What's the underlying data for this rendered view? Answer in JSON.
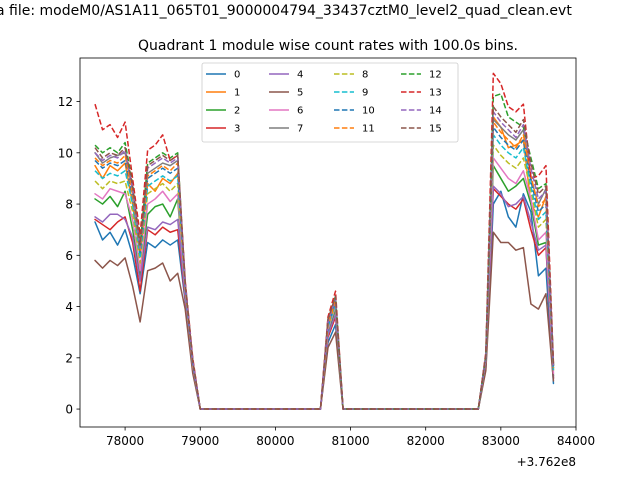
{
  "chart_data": {
    "type": "line",
    "title": "Quadrant 1 module wise count rates with 100.0s bins.",
    "file_title": "a file: modeM0/AS1A11_065T01_9000004794_33437cztM0_level2_quad_clean.evt",
    "xlabel": "",
    "ylabel": "",
    "x_offset_label": "+3.762e8",
    "xlim": [
      77400,
      84000
    ],
    "ylim": [
      -0.7,
      13.7
    ],
    "x_ticks": [
      "78000",
      "79000",
      "80000",
      "81000",
      "82000",
      "83000",
      "84000"
    ],
    "y_ticks": [
      "0",
      "2",
      "4",
      "6",
      "8",
      "10",
      "12"
    ],
    "x": [
      77600,
      77700,
      77800,
      77900,
      78000,
      78100,
      78200,
      78300,
      78400,
      78500,
      78600,
      78700,
      78800,
      78900,
      79000,
      80600,
      80700,
      80800,
      80900,
      82700,
      82800,
      82900,
      83000,
      83100,
      83200,
      83300,
      83400,
      83500,
      83600,
      83700
    ],
    "legend": {
      "position": "upper center",
      "columns": 4
    },
    "grid": false,
    "series": [
      {
        "name": "0",
        "color": "#1f77b4",
        "dash": false,
        "values": [
          7.3,
          6.6,
          6.9,
          6.4,
          7.0,
          6.0,
          4.5,
          6.5,
          6.3,
          6.6,
          6.4,
          6.6,
          4.2,
          1.5,
          0,
          0,
          2.6,
          3.3,
          0,
          0,
          1.6,
          8.0,
          8.5,
          7.5,
          7.1,
          8.4,
          7.7,
          5.2,
          5.5,
          1.0
        ]
      },
      {
        "name": "1",
        "color": "#ff7f0e",
        "dash": false,
        "values": [
          9.5,
          9.0,
          9.5,
          9.3,
          9.6,
          8.0,
          6.0,
          8.8,
          8.5,
          9.0,
          8.8,
          9.2,
          4.8,
          1.8,
          0,
          0,
          3.3,
          4.2,
          0,
          0,
          2.0,
          11.4,
          11.0,
          10.2,
          10.3,
          10.5,
          8.0,
          7.5,
          8.3,
          1.6
        ]
      },
      {
        "name": "2",
        "color": "#2ca02c",
        "dash": false,
        "values": [
          8.2,
          8.0,
          8.3,
          7.9,
          8.5,
          7.0,
          5.2,
          7.6,
          7.9,
          8.0,
          7.5,
          8.2,
          4.5,
          1.7,
          0,
          0,
          3.0,
          3.9,
          0,
          0,
          1.9,
          9.5,
          9.0,
          8.5,
          8.7,
          9.0,
          8.0,
          6.4,
          6.5,
          1.3
        ]
      },
      {
        "name": "3",
        "color": "#d62728",
        "dash": false,
        "values": [
          7.4,
          7.2,
          7.0,
          7.3,
          7.5,
          6.5,
          4.6,
          7.0,
          6.8,
          7.1,
          6.9,
          7.0,
          4.3,
          1.6,
          0,
          0,
          2.8,
          3.6,
          0,
          0,
          1.8,
          8.6,
          8.3,
          8.0,
          7.8,
          8.2,
          7.0,
          6.0,
          6.3,
          1.2
        ]
      },
      {
        "name": "4",
        "color": "#9467bd",
        "dash": false,
        "values": [
          7.5,
          7.3,
          7.6,
          7.6,
          7.4,
          6.7,
          5.0,
          7.1,
          7.0,
          7.3,
          7.2,
          7.4,
          4.4,
          1.6,
          0,
          0,
          2.9,
          3.7,
          0,
          0,
          1.8,
          8.7,
          8.4,
          7.9,
          8.0,
          8.3,
          7.3,
          6.2,
          6.4,
          1.2
        ]
      },
      {
        "name": "5",
        "color": "#8c564b",
        "dash": false,
        "values": [
          5.8,
          5.5,
          5.8,
          5.6,
          5.9,
          4.8,
          3.4,
          5.4,
          5.5,
          5.7,
          5.0,
          5.3,
          3.9,
          1.4,
          0,
          0,
          2.4,
          3.0,
          0,
          0,
          1.5,
          6.9,
          6.5,
          6.5,
          6.2,
          6.3,
          4.1,
          3.9,
          4.5,
          1.1
        ]
      },
      {
        "name": "6",
        "color": "#e377c2",
        "dash": false,
        "values": [
          8.4,
          8.2,
          8.6,
          8.5,
          8.4,
          7.4,
          5.4,
          8.0,
          8.2,
          8.5,
          8.1,
          8.4,
          4.6,
          1.7,
          0,
          0,
          3.1,
          4.0,
          0,
          0,
          1.9,
          9.8,
          9.4,
          9.0,
          8.8,
          9.3,
          8.2,
          6.6,
          6.9,
          1.4
        ]
      },
      {
        "name": "7",
        "color": "#7f7f7f",
        "dash": false,
        "values": [
          10.0,
          9.6,
          9.8,
          9.9,
          10.0,
          8.5,
          6.3,
          9.2,
          9.4,
          9.6,
          9.5,
          9.7,
          4.9,
          1.9,
          0,
          0,
          3.4,
          4.3,
          0,
          0,
          2.1,
          11.3,
          11.0,
          10.7,
          10.5,
          10.9,
          9.0,
          8.0,
          8.6,
          1.7
        ]
      },
      {
        "name": "8",
        "color": "#bcbd22",
        "dash": true,
        "values": [
          8.9,
          8.6,
          8.9,
          8.8,
          8.9,
          7.7,
          5.7,
          8.4,
          8.6,
          8.8,
          8.5,
          8.8,
          4.7,
          1.8,
          0,
          0,
          3.2,
          4.1,
          0,
          0,
          2.0,
          10.3,
          9.9,
          9.6,
          9.4,
          9.8,
          8.5,
          7.1,
          7.4,
          1.5
        ]
      },
      {
        "name": "9",
        "color": "#17becf",
        "dash": true,
        "values": [
          9.3,
          9.0,
          9.2,
          9.1,
          9.3,
          8.0,
          5.9,
          8.7,
          8.9,
          9.1,
          8.9,
          9.1,
          4.7,
          1.8,
          0,
          0,
          3.2,
          4.1,
          0,
          0,
          2.0,
          10.7,
          10.3,
          10.0,
          9.8,
          10.2,
          8.7,
          7.4,
          7.7,
          1.5
        ]
      },
      {
        "name": "10",
        "color": "#1f77b4",
        "dash": true,
        "values": [
          9.7,
          9.4,
          9.6,
          9.5,
          9.7,
          8.3,
          6.1,
          9.0,
          9.2,
          9.4,
          9.2,
          9.4,
          4.8,
          1.8,
          0,
          0,
          3.3,
          4.2,
          0,
          0,
          2.0,
          11.0,
          10.6,
          10.3,
          10.1,
          10.5,
          8.9,
          7.7,
          8.0,
          1.6
        ]
      },
      {
        "name": "11",
        "color": "#ff7f0e",
        "dash": true,
        "values": [
          9.8,
          9.5,
          9.7,
          9.6,
          9.9,
          8.4,
          6.2,
          9.1,
          9.3,
          9.5,
          9.3,
          9.6,
          4.8,
          1.9,
          0,
          0,
          3.3,
          4.2,
          0,
          0,
          2.1,
          11.2,
          10.8,
          10.5,
          10.2,
          10.7,
          9.1,
          7.9,
          8.2,
          1.6
        ]
      },
      {
        "name": "12",
        "color": "#2ca02c",
        "dash": true,
        "values": [
          10.3,
          10.0,
          10.2,
          10.0,
          10.4,
          8.8,
          6.4,
          9.6,
          9.8,
          10.0,
          9.8,
          10.0,
          4.9,
          1.9,
          0,
          0,
          3.5,
          4.4,
          0,
          0,
          2.1,
          12.2,
          12.3,
          11.4,
          11.2,
          11.0,
          9.8,
          8.6,
          8.8,
          1.7
        ]
      },
      {
        "name": "13",
        "color": "#d62728",
        "dash": true,
        "values": [
          11.9,
          10.9,
          11.1,
          10.6,
          11.2,
          9.0,
          6.8,
          10.1,
          10.3,
          10.7,
          9.7,
          9.9,
          5.0,
          2.0,
          0,
          0,
          3.6,
          4.6,
          0,
          0,
          2.2,
          13.1,
          12.7,
          11.8,
          11.6,
          11.9,
          9.0,
          9.1,
          9.5,
          1.8
        ]
      },
      {
        "name": "14",
        "color": "#9467bd",
        "dash": true,
        "values": [
          10.0,
          9.7,
          9.9,
          9.8,
          10.1,
          8.6,
          6.3,
          9.4,
          9.6,
          9.8,
          9.6,
          9.8,
          4.9,
          1.9,
          0,
          0,
          3.4,
          4.3,
          0,
          0,
          2.1,
          11.6,
          11.2,
          10.9,
          10.6,
          11.1,
          9.4,
          8.2,
          8.5,
          1.7
        ]
      },
      {
        "name": "15",
        "color": "#8c564b",
        "dash": true,
        "values": [
          10.2,
          9.8,
          10.0,
          9.9,
          10.2,
          8.7,
          6.4,
          9.5,
          9.7,
          9.9,
          9.7,
          9.9,
          4.9,
          1.9,
          0,
          0,
          3.5,
          4.4,
          0,
          0,
          2.1,
          11.8,
          11.4,
          11.1,
          10.8,
          11.3,
          9.6,
          8.4,
          8.7,
          1.7
        ]
      }
    ]
  }
}
